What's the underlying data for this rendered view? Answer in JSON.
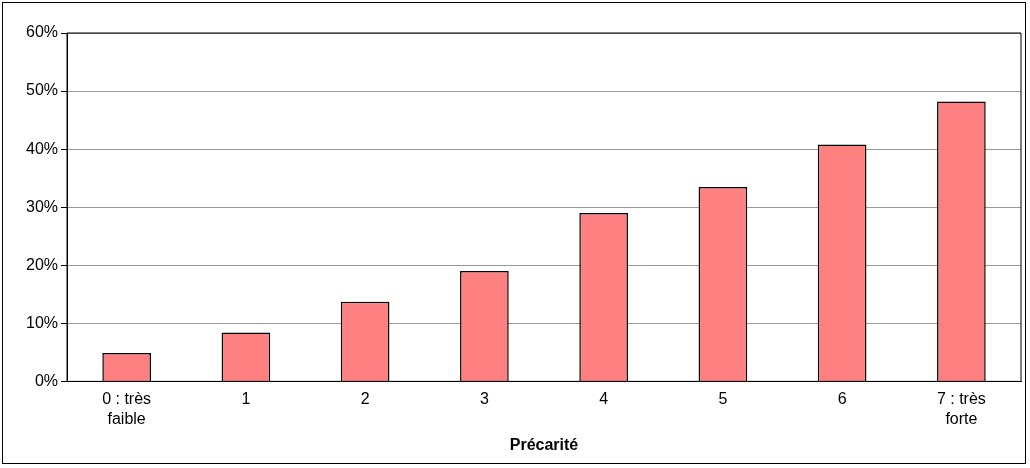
{
  "chart_data": {
    "type": "bar",
    "xlabel": "Précarité",
    "categories": [
      "0 : très faible",
      "1",
      "2",
      "3",
      "4",
      "5",
      "6",
      "7 : très forte"
    ],
    "values": [
      4.9,
      8.4,
      13.7,
      19.0,
      29.0,
      33.5,
      40.8,
      48.2
    ],
    "color": "#ff8080",
    "ylim": [
      0,
      60
    ],
    "yticks": [
      {
        "value": 0,
        "label": "0%"
      },
      {
        "value": 10,
        "label": "10%"
      },
      {
        "value": 20,
        "label": "20%"
      },
      {
        "value": 30,
        "label": "30%"
      },
      {
        "value": 40,
        "label": "40%"
      },
      {
        "value": 50,
        "label": "50%"
      },
      {
        "value": 60,
        "label": "60%"
      }
    ],
    "grid": "y",
    "legend": false
  }
}
